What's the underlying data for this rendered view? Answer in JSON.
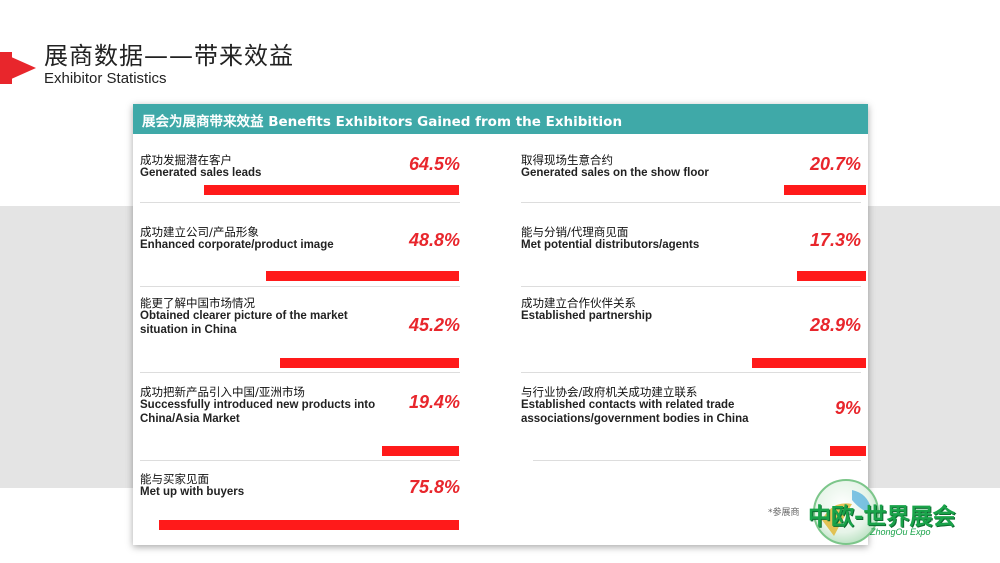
{
  "page": {
    "title_cn": "展商数据——带来效益",
    "title_en": "Exhibitor Statistics"
  },
  "card": {
    "header": "展会为展商带来效益 Benefits Exhibitors Gained from the Exhibition",
    "left": [
      {
        "cn": "成功发掘潜在客户",
        "en": "Generated sales leads",
        "pct": "64.5%",
        "value": 64.5
      },
      {
        "cn": "成功建立公司/产品形象",
        "en": "Enhanced corporate/product image",
        "pct": "48.8%",
        "value": 48.8
      },
      {
        "cn": "能更了解中国市场情况",
        "en": "Obtained clearer picture of the market situation in China",
        "pct": "45.2%",
        "value": 45.2
      },
      {
        "cn": "成功把新产品引入中国/亚洲市场",
        "en": "Successfully introduced new products into China/Asia Market",
        "pct": "19.4%",
        "value": 19.4
      },
      {
        "cn": "能与买家见面",
        "en": "Met up with buyers",
        "pct": "75.8%",
        "value": 75.8
      }
    ],
    "right": [
      {
        "cn": "取得现场生意合约",
        "en": "Generated sales on the show floor",
        "pct": "20.7%",
        "value": 20.7
      },
      {
        "cn": "能与分销/代理商见面",
        "en": "Met potential distributors/agents",
        "pct": "17.3%",
        "value": 17.3
      },
      {
        "cn": "成功建立合作伙伴关系",
        "en": "Established partnership",
        "pct": "28.9%",
        "value": 28.9
      },
      {
        "cn": "与行业协会/政府机关成功建立联系",
        "en": "Established contacts with related trade associations/government bodies in China",
        "pct": "9%",
        "value": 9
      }
    ],
    "footnote": "*参展商"
  },
  "logo": {
    "text": "中欧-世界展会",
    "sub": "ZhongOu Expo"
  },
  "colors": {
    "accent_red": "#e8262c",
    "bar_red": "#ff1a1a",
    "header_teal": "#3fa9a8",
    "logo_green": "#1aa34a"
  }
}
